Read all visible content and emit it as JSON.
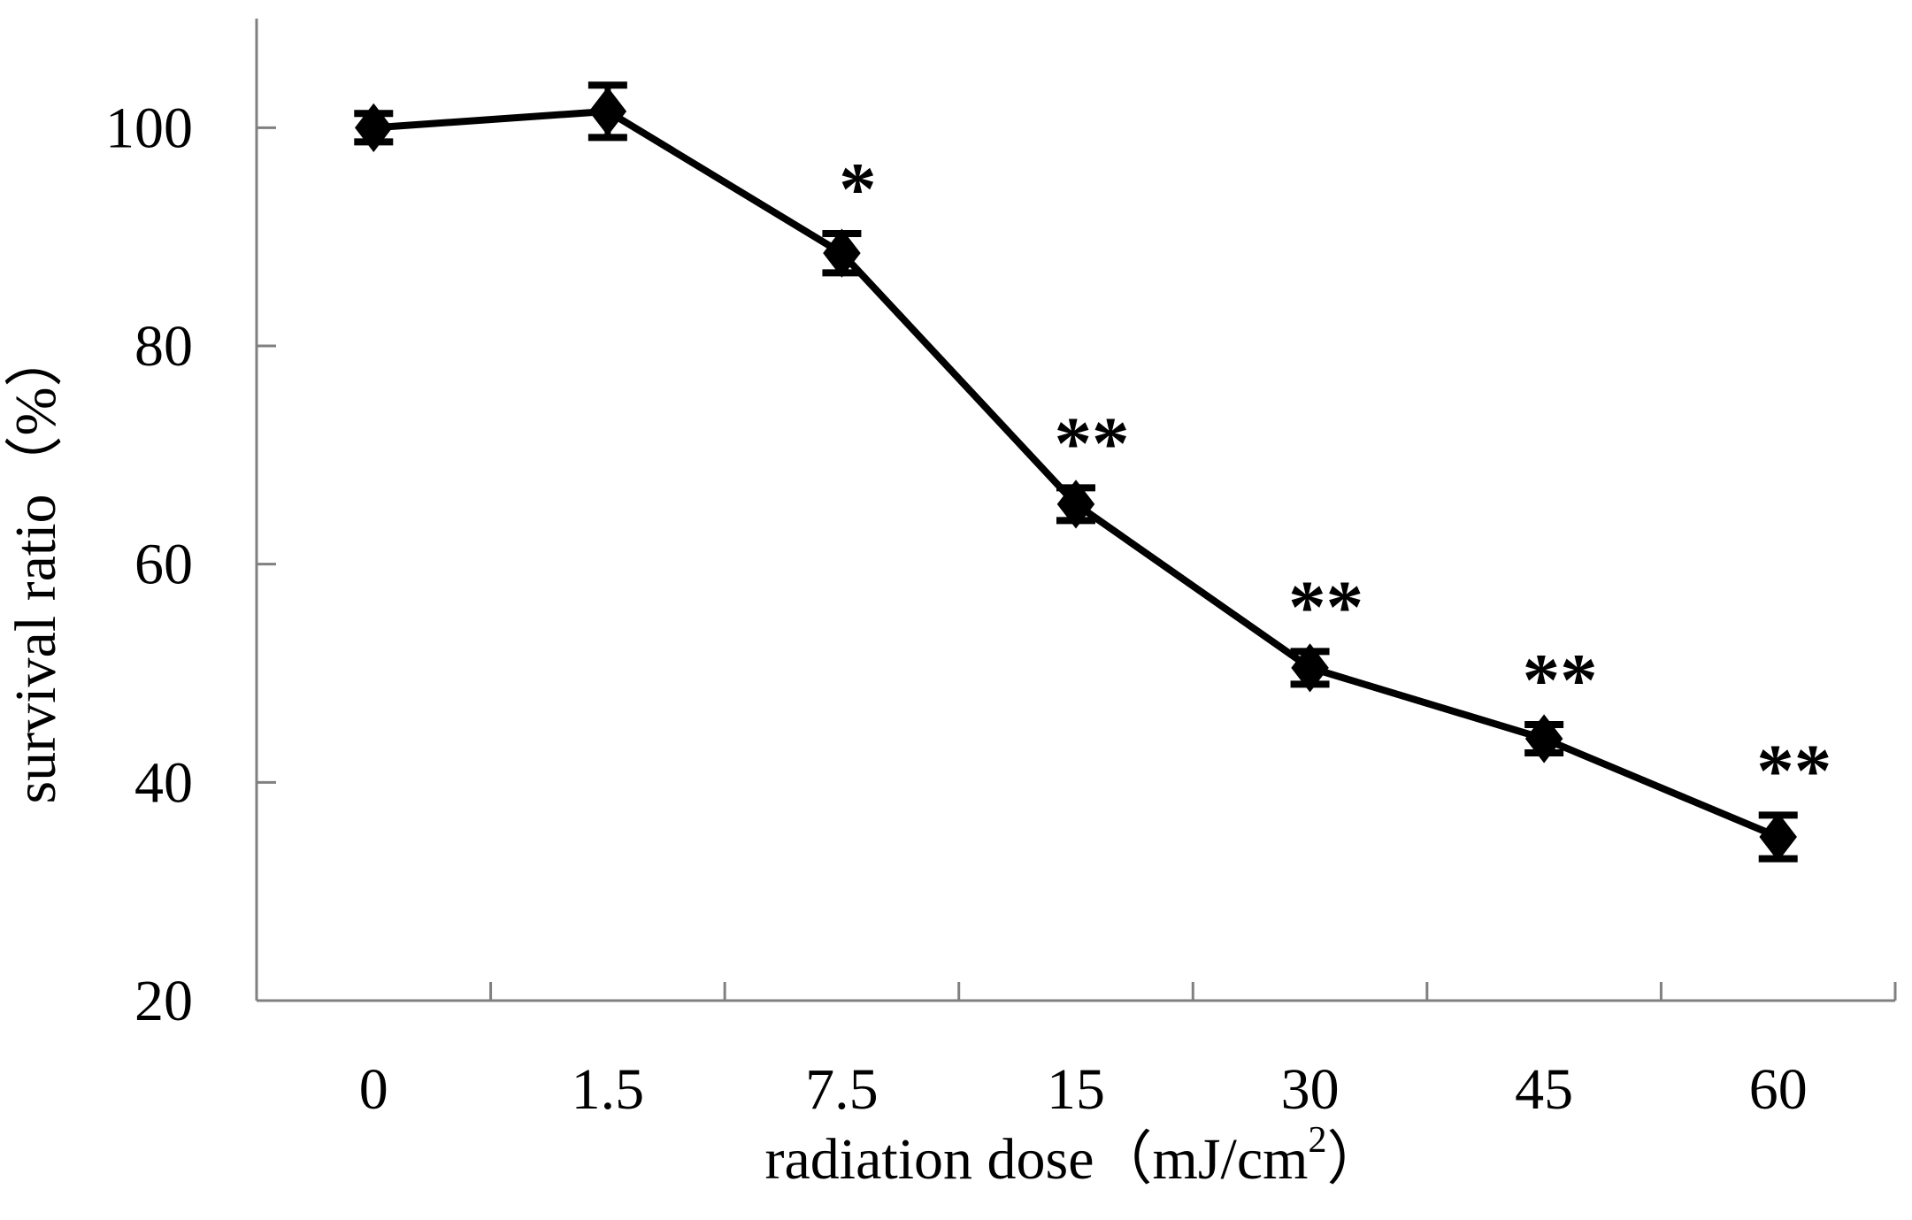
{
  "figure": {
    "background": "#ffffff"
  },
  "chart_data": {
    "type": "line",
    "title": "",
    "categories": [
      "0",
      "1.5",
      "7.5",
      "15",
      "30",
      "45",
      "60"
    ],
    "x_values": [
      0,
      1.5,
      7.5,
      15,
      30,
      45,
      60
    ],
    "series": [
      {
        "name": "survival ratio",
        "marker": "diamond",
        "color": "#000000",
        "values": [
          100,
          101.5,
          88.5,
          65.5,
          50.5,
          44,
          35
        ],
        "errors": [
          1.3,
          2.4,
          1.8,
          1.5,
          1.5,
          1.3,
          2.0
        ],
        "significance": [
          "",
          "",
          "*",
          "**",
          "**",
          "**",
          "**"
        ]
      }
    ],
    "xlabel": "radiation dose（mJ/cm²）",
    "xlabel_parts": {
      "prefix": "radiation dose（mJ/cm",
      "sup": "2",
      "suffix": "）"
    },
    "ylabel": "survival ratio（%）",
    "y_ticks": [
      100,
      80,
      60,
      40,
      20
    ],
    "ylim": [
      20,
      110
    ],
    "grid": false,
    "legend": false,
    "axis_color": "#808080",
    "data_color": "#000000"
  }
}
